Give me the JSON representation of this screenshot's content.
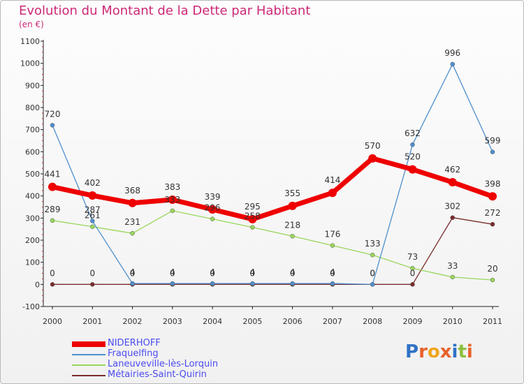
{
  "title": "Evolution du Montant de la Dette par Habitant",
  "unit": "(en €)",
  "logo": {
    "text": "Proxiti",
    "colors": [
      "#2f72c6",
      "#e8622d",
      "#f0a51e",
      "#e8622d",
      "#2f72c6",
      "#8cbf3f",
      "#e8622d"
    ]
  },
  "chart_data": {
    "type": "line",
    "x": [
      "2000",
      "2001",
      "2002",
      "2003",
      "2004",
      "2005",
      "2006",
      "2007",
      "2008",
      "2009",
      "2010",
      "2011"
    ],
    "ylim": [
      -100,
      1100
    ],
    "yticks": [
      "-100",
      "0",
      "100",
      "200",
      "300",
      "400",
      "500",
      "600",
      "700",
      "800",
      "900",
      "1000",
      "1100"
    ],
    "grid": false,
    "legend_position": "bottom-left",
    "series": [
      {
        "name": "NIDERHOFF",
        "color": "#ee0000",
        "values": [
          441,
          402,
          368,
          383,
          339,
          295,
          355,
          414,
          570,
          520,
          462,
          398
        ],
        "labels": [
          "441",
          "402",
          "368",
          "383",
          "339",
          "295",
          "355",
          "414",
          "570",
          "520",
          "462",
          "398"
        ]
      },
      {
        "name": "Fraquelfing",
        "color": "#4f8fce",
        "values": [
          720,
          287,
          4,
          4,
          4,
          4,
          4,
          4,
          0,
          632,
          996,
          599
        ],
        "labels": [
          "720",
          "287",
          "4",
          "4",
          "4",
          "4",
          "4",
          "4",
          "0",
          "632",
          "996",
          "599"
        ]
      },
      {
        "name": "Laneuveville-lès-Lorquin",
        "color": "#99d65c",
        "values": [
          289,
          261,
          231,
          333,
          296,
          258,
          218,
          176,
          133,
          73,
          33,
          20
        ],
        "labels": [
          "289",
          "261",
          "231",
          "333",
          "296",
          "258",
          "218",
          "176",
          "133",
          "73",
          "33",
          "20"
        ]
      },
      {
        "name": "Métairies-Saint-Quirin",
        "color": "#7a2b2b",
        "values": [
          0,
          0,
          0,
          0,
          0,
          0,
          0,
          0,
          0,
          0,
          302,
          272
        ],
        "labels": [
          "0",
          "0",
          "0",
          "0",
          "0",
          "0",
          "0",
          "0",
          "0",
          "0",
          "302",
          "272"
        ]
      }
    ]
  }
}
